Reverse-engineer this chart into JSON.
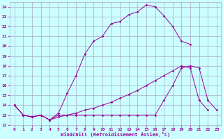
{
  "xlabel": "Windchill (Refroidissement éolien,°C)",
  "bg_color": "#ccffff",
  "line_color": "#990099",
  "grid_color": "#aaaacc",
  "xlim": [
    -0.5,
    23.5
  ],
  "ylim": [
    12,
    24.5
  ],
  "xticks": [
    0,
    1,
    2,
    3,
    4,
    5,
    6,
    7,
    8,
    9,
    10,
    11,
    12,
    13,
    14,
    15,
    16,
    17,
    18,
    19,
    20,
    21,
    22,
    23
  ],
  "yticks": [
    12,
    13,
    14,
    15,
    16,
    17,
    18,
    19,
    20,
    21,
    22,
    23,
    24
  ],
  "series1_x": [
    0,
    1,
    2,
    3,
    4,
    5,
    6,
    7,
    8,
    9,
    10,
    11,
    12,
    13,
    14,
    15,
    16,
    17,
    18,
    19,
    20
  ],
  "series1_y": [
    14.0,
    13.0,
    12.8,
    13.0,
    12.5,
    13.2,
    15.2,
    17.0,
    19.2,
    20.5,
    21.0,
    22.3,
    22.5,
    23.2,
    23.5,
    24.2,
    24.0,
    23.1,
    22.0,
    20.5,
    20.2
  ],
  "series2_x": [
    0,
    1,
    2,
    3,
    4,
    5,
    6,
    7,
    8,
    9,
    10,
    11,
    12,
    13,
    14,
    15,
    16,
    17,
    18,
    19,
    20,
    21,
    22,
    23
  ],
  "series2_y": [
    14.0,
    13.0,
    12.8,
    13.0,
    12.5,
    13.0,
    13.0,
    13.0,
    13.0,
    13.0,
    13.0,
    13.0,
    13.0,
    13.0,
    13.0,
    13.0,
    13.0,
    14.5,
    16.0,
    17.8,
    18.0,
    17.8,
    14.5,
    13.5
  ],
  "series3_x": [
    0,
    1,
    2,
    3,
    4,
    5,
    6,
    7,
    8,
    9,
    10,
    11,
    12,
    13,
    14,
    15,
    16,
    17,
    18,
    19,
    20,
    21,
    22,
    23
  ],
  "series3_y": [
    14.0,
    13.0,
    12.8,
    13.0,
    12.5,
    12.8,
    13.0,
    13.2,
    13.5,
    13.7,
    14.0,
    14.3,
    14.7,
    15.1,
    15.5,
    16.0,
    16.5,
    17.0,
    17.5,
    18.0,
    17.8,
    14.5,
    13.5,
    null
  ]
}
